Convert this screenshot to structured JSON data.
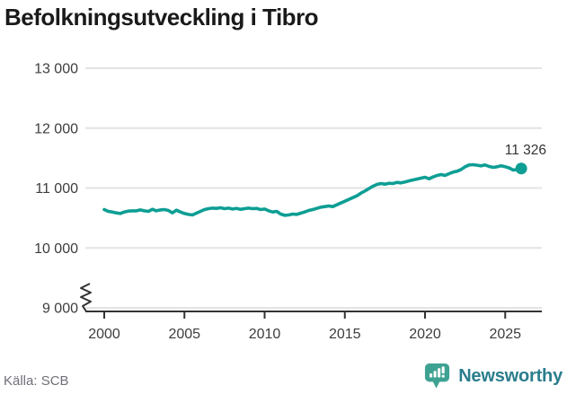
{
  "title": "Befolkningsutveckling i Tibro",
  "footer": {
    "source": "Källa: SCB",
    "brand": "Newsworthy"
  },
  "chart_data": {
    "type": "line",
    "title": "Befolkningsutveckling i Tibro",
    "xlabel": "",
    "ylabel": "",
    "grid": "horizontal",
    "axis_break": true,
    "xlim": [
      2000,
      2026.6
    ],
    "ylim": [
      9000,
      13000
    ],
    "x_ticks": [
      2000,
      2005,
      2010,
      2015,
      2020,
      2025
    ],
    "x_tick_labels": [
      "2000",
      "2005",
      "2010",
      "2015",
      "2020",
      "2025"
    ],
    "y_ticks": [
      9000,
      10000,
      11000,
      12000,
      13000
    ],
    "y_tick_labels": [
      "9 000",
      "10 000",
      "11 000",
      "12 000",
      "13 000"
    ],
    "end_label": "11 326",
    "end_value": 11326,
    "series": [
      {
        "name": "Befolkning i Tibro",
        "x": [
          2000.0,
          2000.25,
          2000.5,
          2000.75,
          2001.0,
          2001.25,
          2001.5,
          2001.75,
          2002.0,
          2002.25,
          2002.5,
          2002.75,
          2003.0,
          2003.25,
          2003.5,
          2003.75,
          2004.0,
          2004.25,
          2004.5,
          2004.75,
          2005.0,
          2005.25,
          2005.5,
          2005.75,
          2006.0,
          2006.25,
          2006.5,
          2006.75,
          2007.0,
          2007.25,
          2007.5,
          2007.75,
          2008.0,
          2008.25,
          2008.5,
          2008.75,
          2009.0,
          2009.25,
          2009.5,
          2009.75,
          2010.0,
          2010.25,
          2010.5,
          2010.75,
          2011.0,
          2011.25,
          2011.5,
          2011.75,
          2012.0,
          2012.25,
          2012.5,
          2012.75,
          2013.0,
          2013.25,
          2013.5,
          2013.75,
          2014.0,
          2014.25,
          2014.5,
          2014.75,
          2015.0,
          2015.25,
          2015.5,
          2015.75,
          2016.0,
          2016.25,
          2016.5,
          2016.75,
          2017.0,
          2017.25,
          2017.5,
          2017.75,
          2018.0,
          2018.25,
          2018.5,
          2018.75,
          2019.0,
          2019.25,
          2019.5,
          2019.75,
          2020.0,
          2020.25,
          2020.5,
          2020.75,
          2021.0,
          2021.25,
          2021.5,
          2021.75,
          2022.0,
          2022.25,
          2022.5,
          2022.75,
          2023.0,
          2023.25,
          2023.5,
          2023.75,
          2024.0,
          2024.25,
          2024.5,
          2024.75,
          2025.0,
          2025.25,
          2025.5,
          2025.75,
          2026.0
        ],
        "values": [
          10640,
          10610,
          10600,
          10585,
          10575,
          10600,
          10615,
          10620,
          10620,
          10635,
          10620,
          10610,
          10645,
          10620,
          10635,
          10640,
          10625,
          10585,
          10630,
          10600,
          10575,
          10560,
          10550,
          10580,
          10610,
          10640,
          10655,
          10665,
          10660,
          10670,
          10655,
          10665,
          10650,
          10660,
          10645,
          10655,
          10665,
          10655,
          10660,
          10640,
          10650,
          10620,
          10600,
          10610,
          10565,
          10545,
          10550,
          10565,
          10560,
          10580,
          10600,
          10625,
          10640,
          10660,
          10680,
          10690,
          10700,
          10690,
          10720,
          10750,
          10780,
          10810,
          10840,
          10870,
          10915,
          10950,
          10990,
          11030,
          11060,
          11075,
          11065,
          11080,
          11075,
          11095,
          11085,
          11100,
          11120,
          11135,
          11150,
          11165,
          11180,
          11155,
          11185,
          11210,
          11225,
          11210,
          11240,
          11265,
          11280,
          11310,
          11355,
          11385,
          11390,
          11380,
          11370,
          11385,
          11360,
          11345,
          11355,
          11370,
          11355,
          11335,
          11300,
          11310,
          11326
        ]
      }
    ],
    "colors": {
      "line": "#0e9e94",
      "grid": "#e3e3e3",
      "axis": "#333333",
      "tick_label": "#3d3d3d",
      "end_label": "#333333",
      "title": "#1a1a1a",
      "source": "#70707b",
      "brand_text": "#2a7d8c",
      "brand_icon": "#3ea292"
    }
  }
}
